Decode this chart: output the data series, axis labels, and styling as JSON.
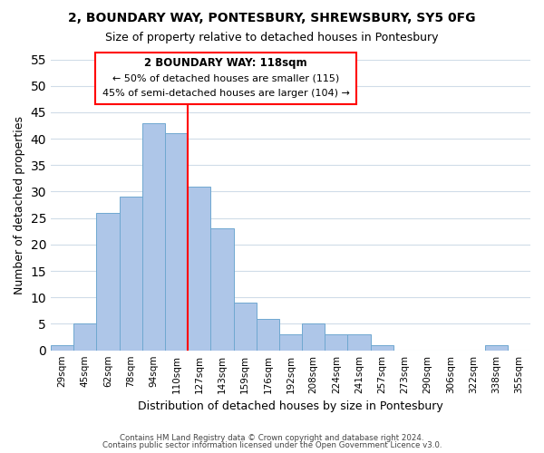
{
  "title": "2, BOUNDARY WAY, PONTESBURY, SHREWSBURY, SY5 0FG",
  "subtitle": "Size of property relative to detached houses in Pontesbury",
  "xlabel": "Distribution of detached houses by size in Pontesbury",
  "ylabel": "Number of detached properties",
  "footer_line1": "Contains HM Land Registry data © Crown copyright and database right 2024.",
  "footer_line2": "Contains public sector information licensed under the Open Government Licence v3.0.",
  "bin_labels": [
    "29sqm",
    "45sqm",
    "62sqm",
    "78sqm",
    "94sqm",
    "110sqm",
    "127sqm",
    "143sqm",
    "159sqm",
    "176sqm",
    "192sqm",
    "208sqm",
    "224sqm",
    "241sqm",
    "257sqm",
    "273sqm",
    "290sqm",
    "306sqm",
    "322sqm",
    "338sqm",
    "355sqm"
  ],
  "bar_values": [
    1,
    5,
    26,
    29,
    43,
    41,
    31,
    23,
    9,
    6,
    3,
    5,
    3,
    3,
    1,
    0,
    0,
    0,
    0,
    1,
    0
  ],
  "bar_color": "#aec6e8",
  "bar_edge_color": "#6fa8d0",
  "ylim": [
    0,
    55
  ],
  "yticks": [
    0,
    5,
    10,
    15,
    20,
    25,
    30,
    35,
    40,
    45,
    50,
    55
  ],
  "property_line_x": 5.5,
  "property_line_color": "red",
  "annotation_title": "2 BOUNDARY WAY: 118sqm",
  "annotation_line1": "← 50% of detached houses are smaller (115)",
  "annotation_line2": "45% of semi-detached houses are larger (104) →",
  "background_color": "#ffffff",
  "grid_color": "#d0dce8"
}
